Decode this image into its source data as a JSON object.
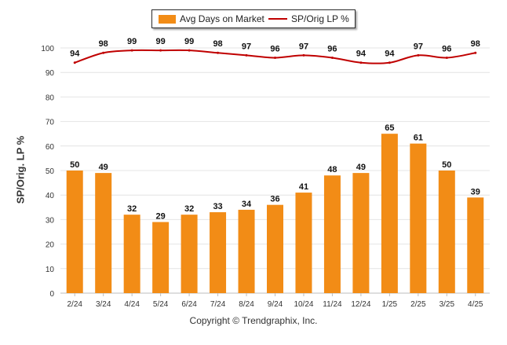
{
  "legend": {
    "bar_label": "Avg Days on Market",
    "line_label": "SP/Orig LP %"
  },
  "footer": {
    "copyright": "Copyright © Trendgraphix, Inc."
  },
  "chart_data": {
    "type": "bar",
    "title": "",
    "xlabel": "",
    "ylabel": "SP/Orig. LP %",
    "ylim": [
      0,
      100
    ],
    "yticks": [
      0,
      10,
      20,
      30,
      40,
      50,
      60,
      70,
      80,
      90,
      100
    ],
    "grid": true,
    "legend_position": "top-center",
    "categories": [
      "2/24",
      "3/24",
      "4/24",
      "5/24",
      "6/24",
      "7/24",
      "8/24",
      "9/24",
      "10/24",
      "11/24",
      "12/24",
      "1/25",
      "2/25",
      "3/25",
      "4/25"
    ],
    "series": [
      {
        "name": "Avg Days on Market",
        "type": "bar",
        "color": "#f28c16",
        "values": [
          50,
          49,
          32,
          29,
          32,
          33,
          34,
          36,
          41,
          48,
          49,
          65,
          61,
          50,
          39
        ]
      },
      {
        "name": "SP/Orig LP %",
        "type": "line",
        "color": "#c00000",
        "values": [
          94,
          98,
          99,
          99,
          99,
          98,
          97,
          96,
          97,
          96,
          94,
          94,
          97,
          96,
          98
        ]
      }
    ]
  }
}
